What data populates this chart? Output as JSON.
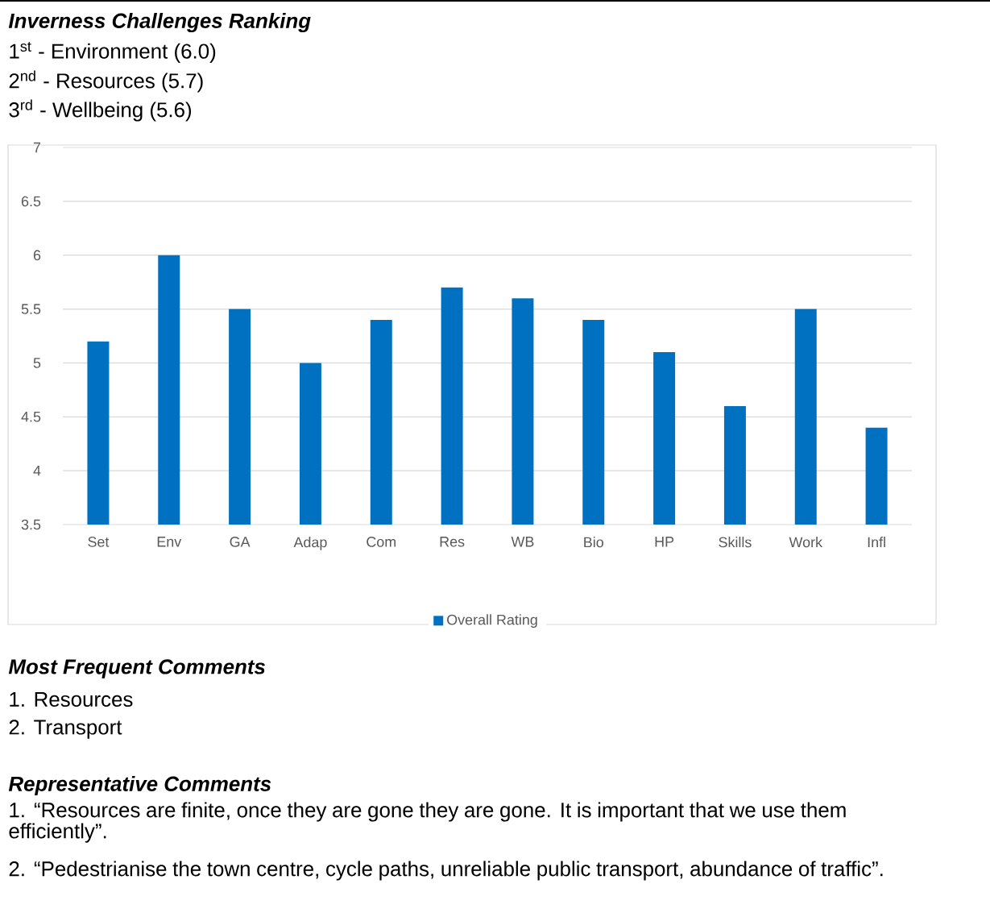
{
  "chart_data": {
    "type": "bar",
    "title": "Inverness Challenges Ranking",
    "annotations": [
      "1$^{st}$ - Environment (6.0)",
      "2$^{nd}$ - Resources (5.7)",
      "3$^{rd}$ - Wellbeing (5.6)",
      "Most Frequent Comments",
      "1. Resources",
      "2. Transport",
      "Representative Comments",
      "1. “Resources are finite, once they are gone they are gone. It is important that we use them efficiently”.",
      "2. “Pedestrianise the town centre, cycle paths, unreliable public transport, abundance of traffic”."
    ],
    "categories": [
      "Set",
      "Env",
      "GA",
      "Adap",
      "Com",
      "Res",
      "WB",
      "Bio",
      "HP",
      "Skills",
      "Work",
      "Infl"
    ],
    "series": [
      {
        "name": "Overall Rating",
        "color": "#0070c0",
        "values": [
          5.2,
          6.0,
          5.5,
          5.0,
          5.4,
          5.7,
          5.6,
          5.4,
          5.1,
          4.6,
          5.5,
          4.4
        ]
      }
    ],
    "ylim": [
      3.5,
      7
    ],
    "yticks": [
      3.5,
      4,
      4.5,
      5,
      5.5,
      6,
      6.5,
      7
    ],
    "grid": "y",
    "legend": "bottom"
  }
}
